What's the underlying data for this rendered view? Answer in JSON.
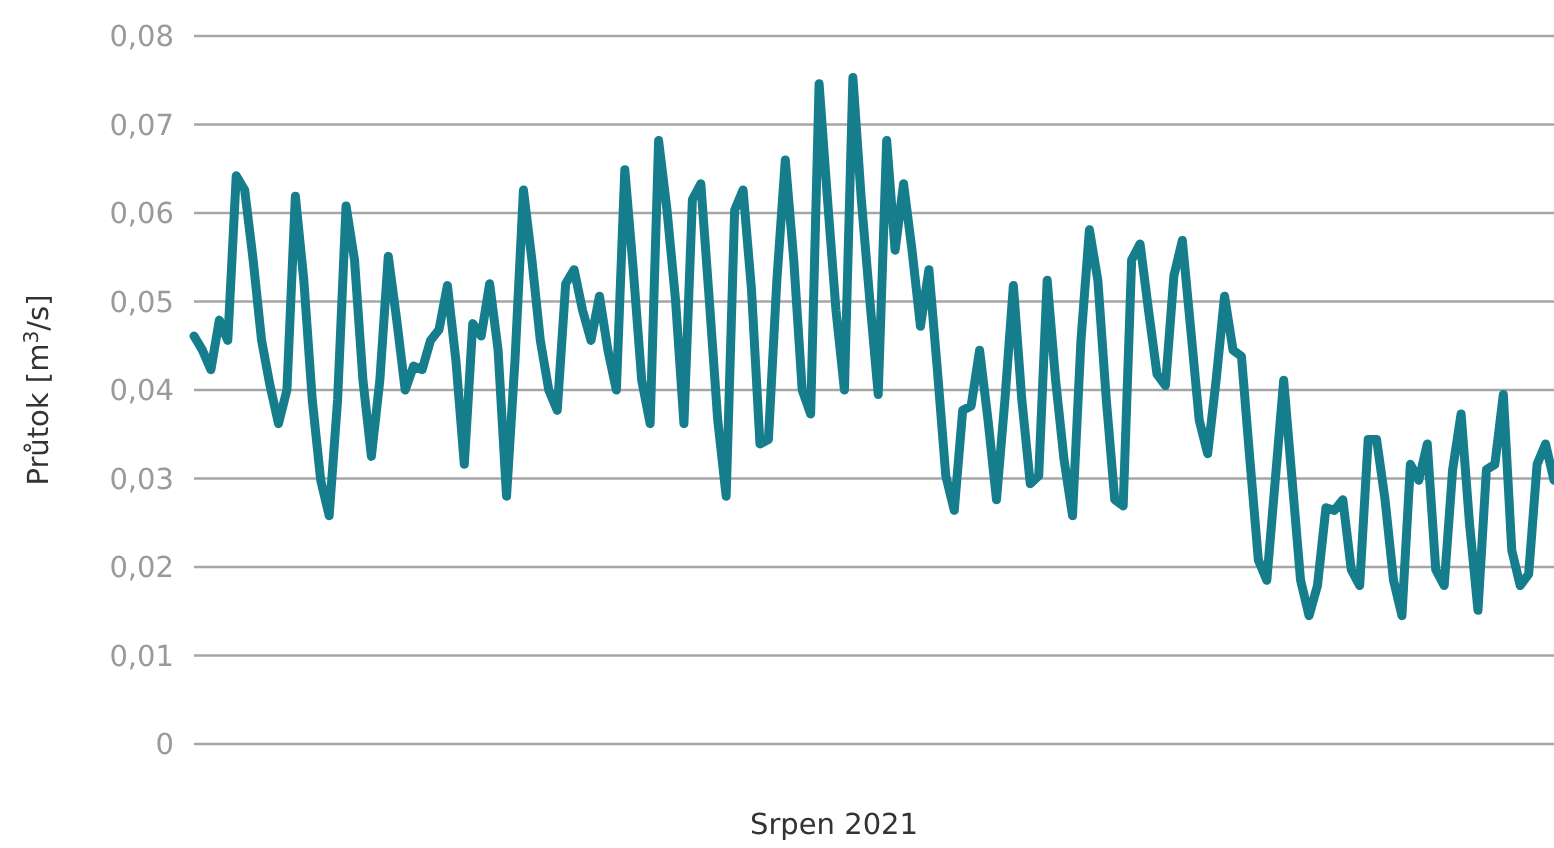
{
  "chart_data": {
    "type": "line",
    "ylabel": "Průtok [m$^{3}$/s]",
    "xlabel": "Srpen 2021",
    "categories": [
      null,
      null,
      null,
      null,
      null,
      null,
      null,
      null,
      null,
      null,
      null,
      null,
      null,
      null,
      null,
      null,
      null,
      null,
      null,
      null,
      null,
      null,
      null,
      null,
      null,
      null,
      null,
      null,
      null,
      null,
      null,
      null,
      null,
      null,
      null,
      null,
      null,
      null,
      null,
      null,
      null,
      null,
      null,
      null,
      null,
      null,
      null,
      null,
      null,
      null,
      null,
      null,
      null,
      null,
      null,
      null,
      null,
      null,
      null,
      null,
      null,
      null,
      null,
      null,
      null,
      null,
      null,
      null,
      null,
      null,
      null,
      null,
      null,
      null,
      null,
      null,
      null,
      null,
      null,
      null,
      null,
      null,
      null,
      null,
      null,
      null,
      null,
      null,
      null,
      null,
      null,
      null,
      null,
      null,
      null,
      null,
      null,
      null,
      null,
      null,
      null,
      null,
      null,
      null,
      null,
      null,
      null,
      null,
      null,
      null,
      null,
      null,
      null,
      null,
      null,
      null,
      null,
      null,
      null,
      null,
      null,
      null,
      null,
      null,
      null,
      null,
      null,
      null,
      null,
      null,
      null,
      null,
      null,
      null,
      null,
      null,
      null,
      null,
      null,
      null,
      null,
      null,
      null,
      null,
      null,
      null,
      null,
      null,
      null,
      null,
      null,
      null,
      null,
      null,
      null,
      null,
      null,
      null,
      null,
      null,
      null,
      null
    ],
    "series": [
      {
        "color": "#167d8c",
        "values": [
          0.0461,
          0.0445,
          0.0423,
          0.0479,
          0.0456,
          0.0642,
          0.0626,
          0.0547,
          0.0456,
          0.0405,
          0.0362,
          0.04,
          0.0619,
          0.0524,
          0.0389,
          0.0298,
          0.0258,
          0.0389,
          0.0608,
          0.0547,
          0.0411,
          0.0325,
          0.0411,
          0.0551,
          0.0479,
          0.04,
          0.0427,
          0.0423,
          0.0456,
          0.0468,
          0.0518,
          0.0434,
          0.0316,
          0.0475,
          0.0461,
          0.052,
          0.0445,
          0.028,
          0.0434,
          0.0626,
          0.0547,
          0.0456,
          0.04,
          0.0377,
          0.052,
          0.0536,
          0.049,
          0.0456,
          0.0506,
          0.0445,
          0.04,
          0.0649,
          0.0536,
          0.0411,
          0.0362,
          0.0682,
          0.0603,
          0.0502,
          0.0362,
          0.0615,
          0.0633,
          0.0502,
          0.0366,
          0.028,
          0.0603,
          0.0626,
          0.0513,
          0.0339,
          0.0344,
          0.0524,
          0.066,
          0.0547,
          0.04,
          0.0373,
          0.0746,
          0.0615,
          0.049,
          0.04,
          0.0753,
          0.0615,
          0.0502,
          0.0395,
          0.0682,
          0.0558,
          0.0633,
          0.0558,
          0.0472,
          0.0536,
          0.0423,
          0.0303,
          0.0264,
          0.0377,
          0.0382,
          0.0445,
          0.0366,
          0.0276,
          0.0389,
          0.0518,
          0.0389,
          0.0294,
          0.0303,
          0.0524,
          0.0411,
          0.0321,
          0.0258,
          0.0456,
          0.0581,
          0.0524,
          0.0389,
          0.0276,
          0.0269,
          0.0547,
          0.0565,
          0.049,
          0.0418,
          0.0405,
          0.0529,
          0.0569,
          0.0468,
          0.0366,
          0.0328,
          0.0411,
          0.0506,
          0.0445,
          0.0438,
          0.0321,
          0.0208,
          0.0185,
          0.0298,
          0.0411,
          0.0298,
          0.0185,
          0.0145,
          0.0179,
          0.0267,
          0.0264,
          0.0276,
          0.0197,
          0.0179,
          0.0344,
          0.0344,
          0.0276,
          0.0185,
          0.0145,
          0.0316,
          0.0298,
          0.0339,
          0.0197,
          0.0179,
          0.031,
          0.0373,
          0.0249,
          0.0151,
          0.031,
          0.0316,
          0.0395,
          0.0219,
          0.0179,
          0.0192,
          0.0316,
          0.0339,
          0.0298
        ]
      }
    ],
    "ylim": [
      0,
      0.08
    ],
    "yticks": [
      {
        "value": 0,
        "label": "0"
      },
      {
        "value": 0.01,
        "label": "0,01"
      },
      {
        "value": 0.02,
        "label": "0,02"
      },
      {
        "value": 0.03,
        "label": "0,03"
      },
      {
        "value": 0.04,
        "label": "0,04"
      },
      {
        "value": 0.05,
        "label": "0,05"
      },
      {
        "value": 0.06,
        "label": "0,06"
      },
      {
        "value": 0.07,
        "label": "0,07"
      },
      {
        "value": 0.08,
        "label": "0,08"
      }
    ],
    "tick_labels": "y",
    "grid": "y",
    "line_style": "solid",
    "marker": "none"
  }
}
